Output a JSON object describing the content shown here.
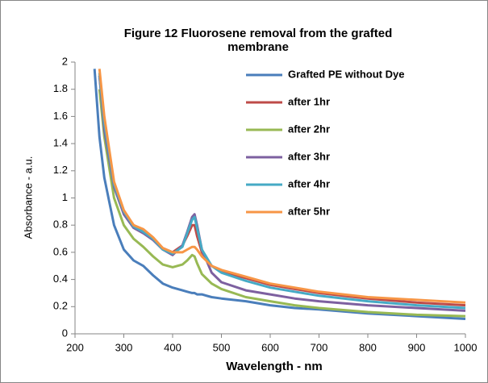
{
  "chart_data": {
    "type": "line",
    "title": "Figure 12 Fluorosene removal from the grafted membrane",
    "x_label": "Wavelength - nm",
    "y_label": "Absorbance - a.u.",
    "x": [
      240,
      250,
      260,
      280,
      300,
      320,
      340,
      360,
      380,
      400,
      420,
      430,
      440,
      445,
      450,
      460,
      480,
      500,
      550,
      600,
      650,
      700,
      800,
      900,
      1000
    ],
    "series": [
      {
        "name": "Grafted PE without Dye",
        "color": "#4a7ebb",
        "values": [
          1.95,
          1.45,
          1.15,
          0.8,
          0.62,
          0.54,
          0.5,
          0.43,
          0.37,
          0.34,
          0.32,
          0.31,
          0.3,
          0.3,
          0.29,
          0.29,
          0.27,
          0.26,
          0.24,
          0.21,
          0.19,
          0.18,
          0.15,
          0.13,
          0.11
        ]
      },
      {
        "name": "after 1hr",
        "color": "#be4b48",
        "values": [
          null,
          1.9,
          1.55,
          1.1,
          0.9,
          0.8,
          0.76,
          0.7,
          0.63,
          0.6,
          0.65,
          0.72,
          0.8,
          0.8,
          0.72,
          0.6,
          0.5,
          0.46,
          0.41,
          0.36,
          0.33,
          0.3,
          0.26,
          0.23,
          0.21
        ]
      },
      {
        "name": "after 2hr",
        "color": "#98b954",
        "values": [
          null,
          1.8,
          1.45,
          1.0,
          0.8,
          0.7,
          0.64,
          0.57,
          0.51,
          0.49,
          0.51,
          0.54,
          0.58,
          0.57,
          0.52,
          0.44,
          0.37,
          0.33,
          0.27,
          0.24,
          0.21,
          0.19,
          0.16,
          0.14,
          0.13
        ]
      },
      {
        "name": "after 3hr",
        "color": "#7d60a0",
        "values": [
          null,
          1.9,
          1.5,
          1.08,
          0.88,
          0.78,
          0.74,
          0.69,
          0.62,
          0.58,
          0.65,
          0.75,
          0.86,
          0.88,
          0.8,
          0.62,
          0.45,
          0.38,
          0.32,
          0.29,
          0.26,
          0.24,
          0.21,
          0.19,
          0.17
        ]
      },
      {
        "name": "after 4hr",
        "color": "#46aac5",
        "values": [
          null,
          1.92,
          1.55,
          1.1,
          0.9,
          0.79,
          0.75,
          0.7,
          0.62,
          0.59,
          0.64,
          0.74,
          0.84,
          0.86,
          0.78,
          0.62,
          0.5,
          0.45,
          0.39,
          0.34,
          0.31,
          0.28,
          0.24,
          0.21,
          0.19
        ]
      },
      {
        "name": "after 5hr",
        "color": "#f79646",
        "values": [
          null,
          1.95,
          1.6,
          1.12,
          0.91,
          0.8,
          0.77,
          0.71,
          0.63,
          0.6,
          0.6,
          0.62,
          0.64,
          0.64,
          0.62,
          0.57,
          0.5,
          0.47,
          0.42,
          0.37,
          0.34,
          0.31,
          0.27,
          0.25,
          0.23
        ]
      }
    ],
    "xlim": [
      200,
      1000
    ],
    "xticks": [
      200,
      300,
      400,
      500,
      600,
      700,
      800,
      900,
      1000
    ],
    "ylim": [
      0,
      2
    ],
    "yticks": [
      0,
      0.2,
      0.4,
      0.6,
      0.8,
      1,
      1.2,
      1.4,
      1.6,
      1.8,
      2
    ]
  }
}
